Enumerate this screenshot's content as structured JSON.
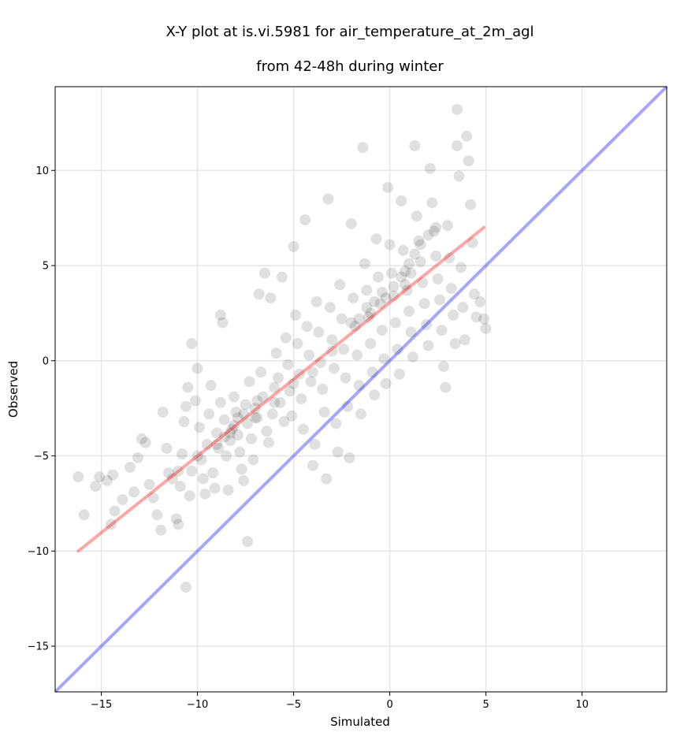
{
  "chart_data": {
    "type": "scatter",
    "title_line1": "X-Y plot at is.vi.5981 for air_temperature_at_2m_agl",
    "title_line2": "from 42-48h during winter",
    "xlabel": "Simulated",
    "ylabel": "Observed",
    "xlim": [
      -17.4,
      14.4
    ],
    "ylim": [
      -17.4,
      14.4
    ],
    "xticks": [
      -15,
      -10,
      -5,
      0,
      5,
      10
    ],
    "yticks": [
      -15,
      -10,
      -5,
      0,
      5,
      10
    ],
    "xtick_labels": [
      "−15",
      "−10",
      "−5",
      "0",
      "5",
      "10"
    ],
    "ytick_labels": [
      "−15",
      "−10",
      "−5",
      "0",
      "5",
      "10"
    ],
    "grid": true,
    "point_color": "#000000",
    "point_alpha": 0.12,
    "identity_line": {
      "x": [
        -17.4,
        14.4
      ],
      "y": [
        -17.4,
        14.4
      ],
      "color": "#0000ff",
      "alpha": 0.35
    },
    "regression_line": {
      "x": [
        -16.2,
        4.9
      ],
      "y": [
        -10.0,
        7.0
      ],
      "color": "#ff0000",
      "alpha": 0.35
    },
    "points": [
      [
        -16.2,
        -6.1
      ],
      [
        -15.9,
        -8.1
      ],
      [
        -15.3,
        -6.6
      ],
      [
        -15.1,
        -6.1
      ],
      [
        -14.7,
        -6.3
      ],
      [
        -14.5,
        -8.6
      ],
      [
        -14.3,
        -7.9
      ],
      [
        -14.4,
        -6.0
      ],
      [
        -13.9,
        -7.3
      ],
      [
        -13.5,
        -5.6
      ],
      [
        -13.3,
        -6.9
      ],
      [
        -13.1,
        -5.1
      ],
      [
        -12.9,
        -4.1
      ],
      [
        -12.7,
        -4.3
      ],
      [
        -12.5,
        -6.5
      ],
      [
        -12.3,
        -7.2
      ],
      [
        -12.1,
        -8.1
      ],
      [
        -11.9,
        -8.9
      ],
      [
        -11.8,
        -2.7
      ],
      [
        -11.6,
        -4.6
      ],
      [
        -11.5,
        -5.9
      ],
      [
        -11.3,
        -6.2
      ],
      [
        -11.1,
        -8.3
      ],
      [
        -11.0,
        -8.6
      ],
      [
        -10.9,
        -6.6
      ],
      [
        -10.8,
        -4.9
      ],
      [
        -10.7,
        -3.2
      ],
      [
        -10.6,
        -2.4
      ],
      [
        -10.5,
        -1.4
      ],
      [
        -10.4,
        -7.1
      ],
      [
        -10.3,
        -5.8
      ],
      [
        -10.3,
        0.9
      ],
      [
        -10.1,
        -2.1
      ],
      [
        -10.0,
        -0.4
      ],
      [
        -9.9,
        -3.5
      ],
      [
        -9.8,
        -5.2
      ],
      [
        -9.7,
        -6.2
      ],
      [
        -9.6,
        -7.0
      ],
      [
        -9.5,
        -4.4
      ],
      [
        -9.4,
        -2.8
      ],
      [
        -9.3,
        -1.3
      ],
      [
        -9.2,
        -5.9
      ],
      [
        -9.1,
        -6.7
      ],
      [
        -9.0,
        -3.8
      ],
      [
        -8.9,
        -4.6
      ],
      [
        -8.8,
        -2.2
      ],
      [
        -8.8,
        2.4
      ],
      [
        -8.7,
        2.0
      ],
      [
        -8.6,
        -3.1
      ],
      [
        -8.5,
        -5.0
      ],
      [
        -8.4,
        -6.8
      ],
      [
        -8.3,
        -4.2
      ],
      [
        -8.2,
        -3.6
      ],
      [
        -8.1,
        -1.9
      ],
      [
        -8.0,
        -2.7
      ],
      [
        -7.9,
        -3.9
      ],
      [
        -7.8,
        -4.8
      ],
      [
        -7.7,
        -5.7
      ],
      [
        -7.6,
        -6.3
      ],
      [
        -7.5,
        -2.3
      ],
      [
        -7.4,
        -3.3
      ],
      [
        -7.3,
        -1.1
      ],
      [
        -7.2,
        -4.1
      ],
      [
        -7.1,
        -5.2
      ],
      [
        -7.0,
        -2.5
      ],
      [
        -6.9,
        -3.0
      ],
      [
        -6.8,
        3.5
      ],
      [
        -6.7,
        -0.6
      ],
      [
        -6.6,
        -1.9
      ],
      [
        -6.5,
        4.6
      ],
      [
        -6.4,
        -3.7
      ],
      [
        -6.3,
        -4.3
      ],
      [
        -6.2,
        3.3
      ],
      [
        -6.1,
        -2.8
      ],
      [
        -6.0,
        -1.4
      ],
      [
        -5.9,
        0.4
      ],
      [
        -5.8,
        -0.9
      ],
      [
        -5.7,
        -2.2
      ],
      [
        -5.6,
        4.4
      ],
      [
        -5.5,
        -3.2
      ],
      [
        -5.4,
        1.2
      ],
      [
        -5.3,
        -0.2
      ],
      [
        -5.2,
        -1.6
      ],
      [
        -5.1,
        -2.9
      ],
      [
        -5.0,
        6.0
      ],
      [
        -4.9,
        2.4
      ],
      [
        -4.8,
        0.9
      ],
      [
        -4.7,
        -0.7
      ],
      [
        -4.6,
        -2.0
      ],
      [
        -4.5,
        -3.6
      ],
      [
        -4.4,
        7.4
      ],
      [
        -4.3,
        1.8
      ],
      [
        -4.2,
        0.3
      ],
      [
        -4.1,
        -1.1
      ],
      [
        -4.0,
        -5.5
      ],
      [
        -3.9,
        -4.4
      ],
      [
        -3.8,
        3.1
      ],
      [
        -3.7,
        1.5
      ],
      [
        -3.6,
        -0.1
      ],
      [
        -3.5,
        -1.5
      ],
      [
        -3.4,
        -2.7
      ],
      [
        -3.3,
        -6.2
      ],
      [
        -3.2,
        8.5
      ],
      [
        -3.1,
        2.8
      ],
      [
        -3.0,
        1.1
      ],
      [
        -2.9,
        -0.4
      ],
      [
        -2.8,
        -3.3
      ],
      [
        -2.7,
        -4.8
      ],
      [
        -2.6,
        4.0
      ],
      [
        -2.5,
        2.2
      ],
      [
        -2.4,
        0.6
      ],
      [
        -2.3,
        -0.9
      ],
      [
        -2.2,
        -2.4
      ],
      [
        -2.1,
        -5.1
      ],
      [
        -2.0,
        7.2
      ],
      [
        -1.9,
        3.3
      ],
      [
        -1.8,
        1.8
      ],
      [
        -1.7,
        0.3
      ],
      [
        -1.6,
        -1.3
      ],
      [
        -1.5,
        -2.8
      ],
      [
        -1.4,
        11.2
      ],
      [
        -1.3,
        5.1
      ],
      [
        -1.2,
        3.7
      ],
      [
        -1.1,
        2.3
      ],
      [
        -1.0,
        0.9
      ],
      [
        -0.9,
        -0.6
      ],
      [
        -0.8,
        -1.8
      ],
      [
        -0.7,
        6.4
      ],
      [
        -0.6,
        4.4
      ],
      [
        -0.5,
        3.0
      ],
      [
        -0.4,
        1.6
      ],
      [
        -0.3,
        0.1
      ],
      [
        -0.2,
        -1.2
      ],
      [
        -0.1,
        9.1
      ],
      [
        0.0,
        6.1
      ],
      [
        0.1,
        4.6
      ],
      [
        0.2,
        3.4
      ],
      [
        0.3,
        2.0
      ],
      [
        0.4,
        0.6
      ],
      [
        0.5,
        -0.7
      ],
      [
        0.6,
        8.4
      ],
      [
        0.7,
        5.8
      ],
      [
        0.8,
        4.7
      ],
      [
        0.9,
        3.7
      ],
      [
        1.0,
        2.6
      ],
      [
        1.1,
        1.5
      ],
      [
        1.2,
        0.2
      ],
      [
        1.3,
        11.3
      ],
      [
        1.4,
        7.6
      ],
      [
        1.5,
        6.3
      ],
      [
        1.6,
        5.2
      ],
      [
        1.7,
        4.1
      ],
      [
        1.8,
        3.0
      ],
      [
        1.9,
        1.9
      ],
      [
        2.0,
        0.8
      ],
      [
        2.1,
        10.1
      ],
      [
        2.2,
        8.3
      ],
      [
        2.3,
        6.8
      ],
      [
        2.4,
        5.5
      ],
      [
        2.5,
        4.3
      ],
      [
        2.6,
        3.2
      ],
      [
        2.7,
        1.6
      ],
      [
        2.8,
        -0.3
      ],
      [
        2.9,
        -1.4
      ],
      [
        3.0,
        7.1
      ],
      [
        3.1,
        5.4
      ],
      [
        3.2,
        3.8
      ],
      [
        3.3,
        2.4
      ],
      [
        3.4,
        0.9
      ],
      [
        3.5,
        11.3
      ],
      [
        3.6,
        9.7
      ],
      [
        3.7,
        4.9
      ],
      [
        3.8,
        2.8
      ],
      [
        3.9,
        1.1
      ],
      [
        4.0,
        11.8
      ],
      [
        4.1,
        10.5
      ],
      [
        4.2,
        8.2
      ],
      [
        4.3,
        6.2
      ],
      [
        4.4,
        3.5
      ],
      [
        4.5,
        2.3
      ],
      [
        4.7,
        3.1
      ],
      [
        4.9,
        2.2
      ],
      [
        5.0,
        1.7
      ],
      [
        3.5,
        13.2
      ],
      [
        -7.4,
        -9.5
      ],
      [
        -10.6,
        -11.9
      ],
      [
        -6.9,
        -2.1
      ],
      [
        -8.1,
        -3.4
      ],
      [
        -7.9,
        -3.0
      ],
      [
        -8.3,
        -3.8
      ],
      [
        -7.6,
        -2.8
      ],
      [
        -8.6,
        -4.0
      ],
      [
        -1.6,
        2.2
      ],
      [
        -1.2,
        2.8
      ],
      [
        -0.8,
        3.1
      ],
      [
        -0.4,
        3.6
      ],
      [
        0.2,
        3.9
      ],
      [
        0.6,
        4.4
      ],
      [
        1.0,
        5.1
      ],
      [
        1.3,
        5.6
      ],
      [
        1.6,
        6.1
      ],
      [
        2.0,
        6.6
      ],
      [
        2.4,
        7.0
      ],
      [
        0.8,
        4.0
      ],
      [
        1.1,
        4.6
      ],
      [
        -0.2,
        3.3
      ],
      [
        -1.0,
        2.5
      ],
      [
        -2.0,
        2.0
      ],
      [
        -3.0,
        0.5
      ],
      [
        -4.0,
        -0.6
      ],
      [
        -5.0,
        -1.2
      ],
      [
        -6.0,
        -2.2
      ],
      [
        -7.0,
        -3.0
      ],
      [
        -9.0,
        -4.4
      ],
      [
        -10.0,
        -5.0
      ],
      [
        -11.0,
        -5.8
      ]
    ]
  }
}
